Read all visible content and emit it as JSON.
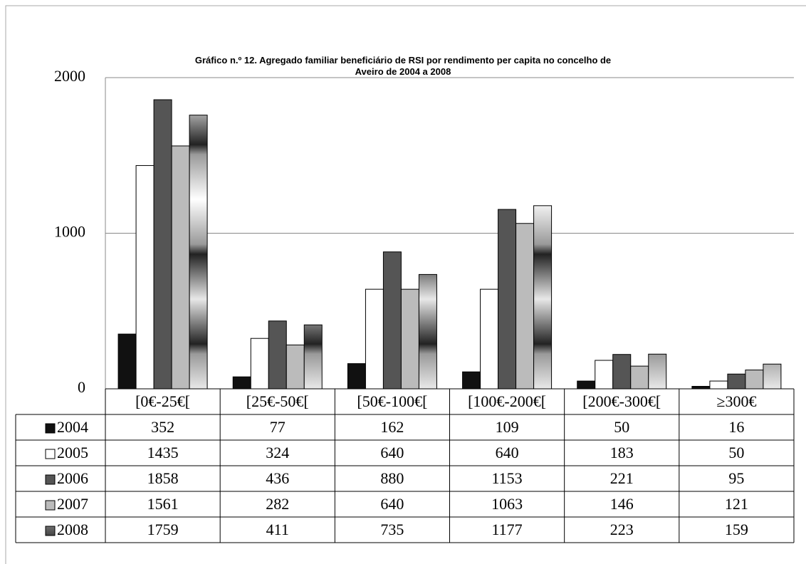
{
  "chart_data": {
    "type": "bar",
    "title": "Gráfico n.º 12. Agregado familiar beneficiário de RSI por rendimento per capita no concelho de\nAveiro de 2004 a 2008",
    "categories": [
      "[0€-25€[",
      "[25€-50€[",
      "[50€-100€[",
      "[100€-200€[",
      "[200€-300€[",
      "≥300€"
    ],
    "series": [
      {
        "name": "2004",
        "color": "#111111",
        "values": [
          352,
          77,
          162,
          109,
          50,
          16
        ]
      },
      {
        "name": "2005",
        "color": "#ffffff",
        "values": [
          1435,
          324,
          640,
          640,
          183,
          50
        ]
      },
      {
        "name": "2006",
        "color": "#555555",
        "values": [
          1858,
          436,
          880,
          1153,
          221,
          95
        ]
      },
      {
        "name": "2007",
        "color": "#bbbbbb",
        "values": [
          1561,
          282,
          640,
          1063,
          146,
          121
        ]
      },
      {
        "name": "2008",
        "color": "#9a9a9a",
        "values": [
          1759,
          411,
          735,
          1177,
          223,
          159
        ]
      }
    ],
    "ylim": [
      0,
      2000
    ],
    "yticks": [
      0,
      1000,
      2000
    ],
    "grid": true
  }
}
